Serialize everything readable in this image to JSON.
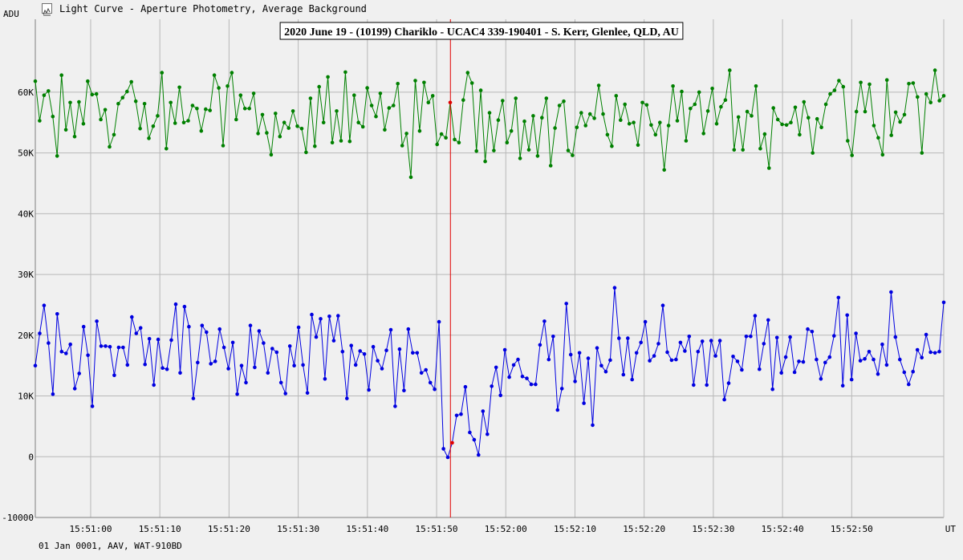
{
  "window": {
    "title": "Light Curve - Aperture Photometry, Average Background",
    "icon": "chart-icon"
  },
  "footer": {
    "info": "01 Jan 0001, AAV, WAT-910BD"
  },
  "chart_data": {
    "type": "line",
    "title": "2020 June 19 - (10199) Chariklo - UCAC4 339-190401 - S. Kerr, Glenlee, QLD, AU",
    "ylabel": "ADU",
    "xlabel": "UT",
    "ylim": [
      -10000,
      72000
    ],
    "y_ticks": [
      {
        "value": -10000,
        "label": "-10000"
      },
      {
        "value": 0,
        "label": "0"
      },
      {
        "value": 10000,
        "label": "10K"
      },
      {
        "value": 20000,
        "label": "20K"
      },
      {
        "value": 30000,
        "label": "30K"
      },
      {
        "value": 40000,
        "label": "40K"
      },
      {
        "value": 50000,
        "label": "50K"
      },
      {
        "value": 60000,
        "label": "60K"
      }
    ],
    "x_start": "15:50:52.0",
    "x_end": "15:53:03.3",
    "x_ticks": [
      "15:51:00",
      "15:51:10",
      "15:51:20",
      "15:51:30",
      "15:51:40",
      "15:51:50",
      "15:52:00",
      "15:52:10",
      "15:52:20",
      "15:52:30",
      "15:52:40",
      "15:52:50"
    ],
    "grid": true,
    "marker": {
      "time": "15:51:52.0",
      "color": "#e00000"
    },
    "series": [
      {
        "color": "#008000",
        "values": [
          61800,
          55300,
          59500,
          60200,
          56000,
          49500,
          62800,
          53800,
          58300,
          52700,
          58400,
          54800,
          61800,
          59600,
          59700,
          55500,
          57100,
          51000,
          53000,
          58100,
          59100,
          60100,
          61700,
          58500,
          54000,
          58100,
          52400,
          54400,
          56100,
          63200,
          50700,
          58300,
          54900,
          60800,
          55000,
          55300,
          57800,
          57300,
          53600,
          57200,
          57000,
          62800,
          60700,
          51200,
          61000,
          63200,
          55500,
          59500,
          57300,
          57300,
          59800,
          53200,
          56300,
          53300,
          49700,
          56500,
          52700,
          55000,
          54100,
          56900,
          54400,
          54000,
          50100,
          59000,
          51100,
          60900,
          55000,
          62500,
          51700,
          56900,
          52000,
          63300,
          51900,
          59500,
          55000,
          54300,
          60700,
          57800,
          56000,
          59800,
          53800,
          57400,
          57800,
          61400,
          51200,
          53200,
          46000,
          61900,
          53600,
          61600,
          58300,
          59400,
          51400,
          53100,
          52500,
          58300,
          52200,
          51700,
          58700,
          63200,
          61500,
          50300,
          60300,
          48600,
          56600,
          50400,
          55400,
          58600,
          51700,
          53600,
          59000,
          49100,
          55200,
          50500,
          56100,
          49500,
          55800,
          59000,
          47900,
          54100,
          57800,
          58500,
          50400,
          49600,
          54200,
          56600,
          54500,
          56400,
          55700,
          61100,
          56400,
          53000,
          51100,
          59400,
          55400,
          58000,
          54800,
          55000,
          51300,
          58300,
          57900,
          54600,
          53000,
          55000,
          47200,
          54500,
          61000,
          55300,
          60100,
          52000,
          57300,
          58000,
          60000,
          53200,
          56900,
          60600,
          54800,
          57600,
          58700,
          63600,
          50500,
          55900,
          50500,
          56800,
          56100,
          61000,
          50700,
          53100,
          47500,
          57400,
          55500,
          54700,
          54600,
          55000,
          57500,
          53000,
          58400,
          55800,
          50000,
          55600,
          54200,
          58000,
          59700,
          60300,
          61900,
          60900,
          52000,
          49600,
          56800,
          61600,
          56800,
          61300,
          54500,
          52500,
          49700,
          62000,
          52900,
          56700,
          55100,
          56300,
          61400,
          61500,
          59200,
          50000,
          59700,
          58300,
          63600,
          58600,
          59400
        ]
      },
      {
        "color": "#0000e0",
        "values": [
          15000,
          20300,
          24900,
          18700,
          10300,
          23500,
          17300,
          17000,
          18500,
          11200,
          13700,
          21400,
          16700,
          8300,
          22300,
          18200,
          18200,
          18100,
          13400,
          18000,
          18000,
          15100,
          23000,
          20300,
          21200,
          15200,
          19400,
          11800,
          19300,
          14600,
          14400,
          19200,
          25100,
          13800,
          24700,
          21400,
          9600,
          15500,
          21600,
          20500,
          15300,
          15700,
          21000,
          18000,
          14500,
          18800,
          10300,
          15000,
          12200,
          21600,
          14700,
          20700,
          18700,
          13800,
          17800,
          17200,
          12200,
          10400,
          18200,
          15000,
          21300,
          15100,
          10500,
          23400,
          19700,
          22700,
          12800,
          23100,
          19100,
          23200,
          17300,
          9600,
          18300,
          15100,
          17400,
          16900,
          11000,
          18100,
          15800,
          14500,
          17500,
          20900,
          8300,
          17700,
          10900,
          21000,
          17100,
          17100,
          13800,
          14300,
          12200,
          11100,
          22200,
          1300,
          -100,
          2300,
          6800,
          7000,
          11500,
          4000,
          2800,
          300,
          7500,
          3700,
          11600,
          14700,
          10100,
          17600,
          13100,
          15100,
          16000,
          13200,
          12900,
          11900,
          11900,
          18400,
          22300,
          16000,
          19800,
          7700,
          11200,
          25200,
          16800,
          12400,
          17100,
          8800,
          16200,
          5200,
          17900,
          15000,
          14000,
          15900,
          27800,
          19500,
          13500,
          19500,
          12700,
          17100,
          18800,
          22200,
          15800,
          16600,
          18600,
          24900,
          17200,
          15900,
          16000,
          18800,
          17400,
          19800,
          11800,
          17300,
          19000,
          11800,
          19100,
          16600,
          19100,
          9400,
          12100,
          16500,
          15700,
          14300,
          19800,
          19800,
          23200,
          14400,
          18600,
          22500,
          11100,
          19600,
          13800,
          16400,
          19700,
          13900,
          15700,
          15600,
          21000,
          20600,
          16000,
          12800,
          15500,
          16400,
          19900,
          26200,
          11700,
          23300,
          12700,
          20300,
          15800,
          16100,
          17300,
          16000,
          13600,
          18500,
          15100,
          27100,
          19700,
          16000,
          13900,
          11900,
          14000,
          17600,
          16300,
          20100,
          17200,
          17100,
          17300,
          25400
        ]
      }
    ]
  }
}
